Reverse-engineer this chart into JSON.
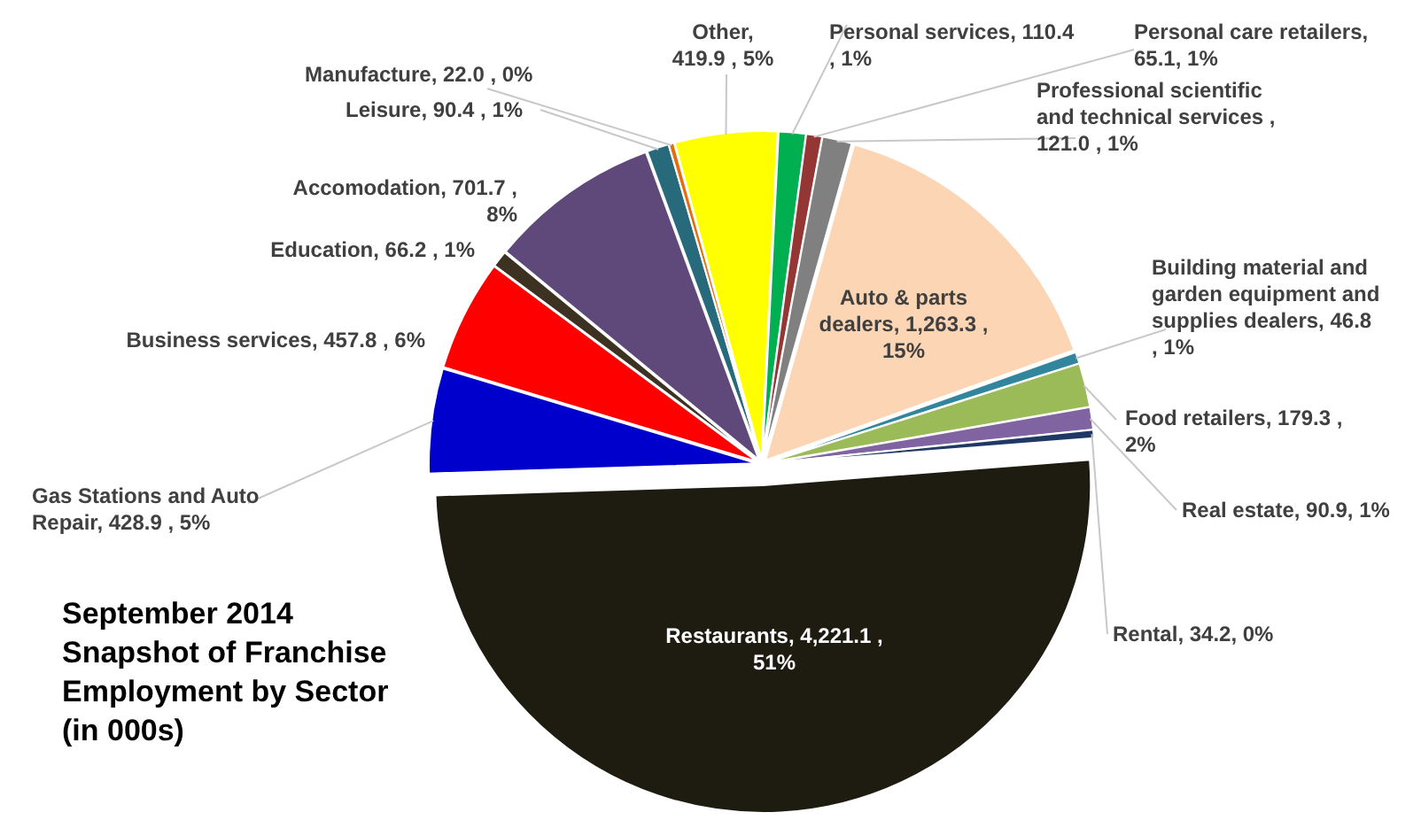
{
  "chart_data": {
    "type": "pie",
    "title": "September 2014 Snapshot of Franchise Employment by Sector (in 000s)",
    "categories": [
      "Personal services",
      "Personal care retailers",
      "Professional scientific and technical services",
      "Auto & parts dealers",
      "Building material and garden equipment and supplies dealers",
      "Food retailers",
      "Real estate",
      "Rental",
      "Restaurants",
      "Gas Stations and Auto Repair",
      "Business services",
      "Education",
      "Accomodation",
      "Leisure",
      "Manufacture",
      "Other"
    ],
    "values": [
      110.4,
      65.1,
      121.0,
      1263.3,
      46.8,
      179.3,
      90.9,
      34.2,
      4221.1,
      428.9,
      457.8,
      66.2,
      701.7,
      90.4,
      22.0,
      419.9
    ],
    "value_labels": [
      ", 110.4 , 1%",
      ", 65.1, 1%",
      " , 121.0 , 1%",
      ", 1,263.3 , 15%",
      ", 46.8 , 1%",
      ", 179.3 , 2%",
      ", 90.9, 1%",
      ", 34.2, 0%",
      ", 4,221.1 , 51%",
      ", 428.9 , 5%",
      ", 457.8 , 6%",
      ", 66.2 , 1%",
      ", 701.7 , 8%",
      ", 90.4 , 1%",
      ",  22.0 , 0%",
      ", 419.9 , 5%"
    ],
    "colors": [
      "#00b050",
      "#943634",
      "#808080",
      "#fcd5b4",
      "#31859c",
      "#9bbb59",
      "#8064a2",
      "#1f3864",
      "#1e1c11",
      "#0000cc",
      "#ff0000",
      "#3d3221",
      "#5f497a",
      "#276a7c",
      "#e46c0a",
      "#ffff00"
    ]
  }
}
